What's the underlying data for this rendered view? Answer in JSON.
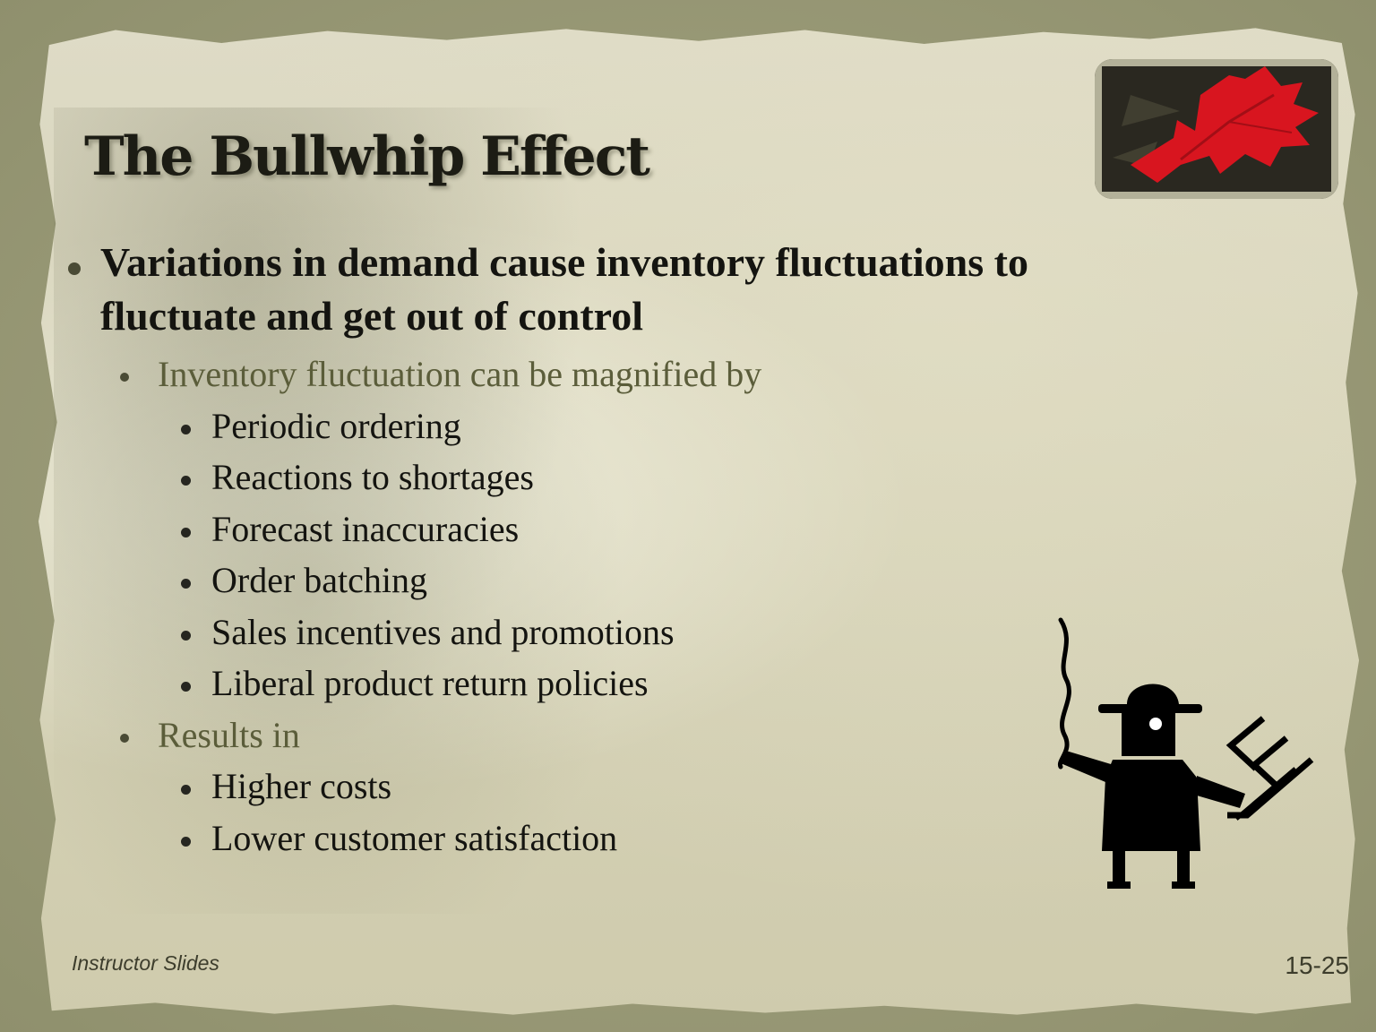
{
  "slide": {
    "title": "The Bullwhip Effect",
    "main_bullet_line1": "Variations in demand cause inventory fluctuations to",
    "main_bullet_line2": "fluctuate and get out of control",
    "sub1": "Inventory fluctuation can be magnified by",
    "sub1_items": [
      "Periodic ordering",
      "Reactions to shortages",
      "Forecast inaccuracies",
      "Order batching",
      "Sales incentives and promotions",
      "Liberal product return policies"
    ],
    "sub2": "Results in",
    "sub2_items": [
      "Higher costs",
      "Lower customer satisfaction"
    ]
  },
  "footer": {
    "left": "Instructor Slides",
    "right": "15-25"
  },
  "images": {
    "corner_photo": "red-maple-leaf-photo",
    "figure": "man-with-bullwhip-clipart"
  },
  "colors": {
    "paper": "#d8d5bc",
    "border": "#9a9a78",
    "title": "#1c1c14",
    "subheading": "#5b5d3a",
    "text": "#141410",
    "leaf": "#d8151f"
  }
}
